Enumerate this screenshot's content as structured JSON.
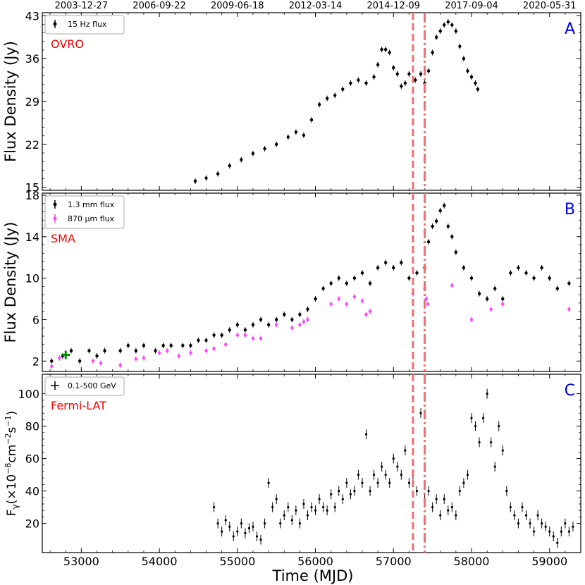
{
  "chart_data": [
    {
      "type": "scatter",
      "panel_label": "A",
      "instrument": "OVRO",
      "ylabel": "Flux Density (Jy)",
      "xlabel": "",
      "xlim": [
        52500,
        59400
      ],
      "ylim": [
        14.5,
        43.5
      ],
      "yticks": [
        15,
        22,
        29,
        36,
        43
      ],
      "top_axis_dates": [
        "2003-12-27",
        "2006-09-22",
        "2009-06-18",
        "2012-03-14",
        "2014-12-09",
        "2017-09-04",
        "2020-05-31"
      ],
      "top_axis_mjd": [
        53000,
        54000,
        55000,
        56000,
        57000,
        58000,
        59000
      ],
      "legend": [
        {
          "label": "15 Hz flux",
          "color": "#000000"
        }
      ],
      "series": [
        {
          "name": "15 Hz flux",
          "color": "#000000",
          "x": [
            54460,
            54600,
            54750,
            54900,
            55050,
            55200,
            55350,
            55500,
            55650,
            55750,
            55850,
            55950,
            56050,
            56150,
            56250,
            56350,
            56450,
            56550,
            56650,
            56750,
            56800,
            56850,
            56900,
            56950,
            57000,
            57050,
            57100,
            57150,
            57200,
            57280,
            57350,
            57400,
            57450,
            57500,
            57550,
            57600,
            57650,
            57700,
            57750,
            57800,
            57850,
            57900,
            57950,
            58000,
            58050,
            58080
          ],
          "y": [
            16.0,
            16.5,
            17.2,
            18.5,
            19.5,
            20.5,
            21.3,
            22.0,
            23.2,
            24.0,
            23.5,
            26.0,
            28.5,
            29.5,
            30.0,
            31.0,
            32.0,
            32.5,
            32.0,
            33.0,
            35.0,
            37.5,
            37.5,
            37.0,
            34.5,
            33.5,
            31.5,
            32.0,
            33.5,
            32.5,
            33.5,
            32.0,
            34.0,
            37.0,
            39.5,
            40.5,
            41.5,
            42.0,
            41.5,
            40.5,
            38.0,
            36.0,
            34.0,
            33.0,
            32.0,
            31.0
          ]
        }
      ],
      "vlines": [
        {
          "x": 57250,
          "style": "dashed",
          "color": "#f07070"
        },
        {
          "x": 57400,
          "style": "dashdot",
          "color": "#f07070"
        }
      ]
    },
    {
      "type": "scatter",
      "panel_label": "B",
      "instrument": "SMA",
      "ylabel": "Flux Density (Jy)",
      "xlabel": "",
      "xlim": [
        52500,
        59400
      ],
      "ylim": [
        1.0,
        18.2
      ],
      "yticks": [
        2,
        6,
        10,
        14,
        18
      ],
      "legend": [
        {
          "label": "1.3 mm flux",
          "color": "#000000"
        },
        {
          "label": "870 μm flux",
          "color": "#ff44ff"
        }
      ],
      "series": [
        {
          "name": "1.3 mm flux",
          "color": "#000000",
          "x": [
            52620,
            52760,
            52870,
            52980,
            53100,
            53200,
            53300,
            53500,
            53600,
            53700,
            53800,
            53950,
            54050,
            54150,
            54300,
            54400,
            54500,
            54600,
            54700,
            54800,
            54900,
            55000,
            55100,
            55200,
            55300,
            55400,
            55500,
            55600,
            55700,
            55800,
            55900,
            56000,
            56100,
            56200,
            56300,
            56400,
            56500,
            56600,
            56700,
            56800,
            56900,
            57000,
            57100,
            57200,
            57300,
            57400,
            57450,
            57500,
            57550,
            57600,
            57650,
            57700,
            57750,
            57800,
            57900,
            58000,
            58100,
            58200,
            58300,
            58400,
            58500,
            58600,
            58700,
            58800,
            58900,
            59000,
            59100,
            59250
          ],
          "y": [
            2.0,
            2.5,
            3.0,
            2.0,
            3.0,
            2.5,
            3.0,
            3.0,
            3.5,
            3.0,
            3.5,
            3.0,
            3.5,
            3.5,
            3.5,
            3.5,
            4.0,
            4.0,
            4.5,
            4.5,
            5.0,
            5.5,
            5.0,
            5.5,
            6.0,
            5.5,
            6.0,
            6.5,
            6.0,
            6.5,
            7.0,
            8.0,
            9.0,
            9.5,
            10.0,
            9.5,
            10.0,
            10.5,
            9.5,
            11.0,
            11.5,
            11.0,
            11.5,
            10.0,
            10.5,
            11.0,
            13.5,
            15.0,
            15.5,
            16.5,
            17.0,
            15.0,
            14.0,
            12.5,
            11.0,
            10.0,
            8.5,
            8.0,
            9.0,
            8.0,
            10.5,
            11.0,
            10.5,
            10.0,
            11.0,
            10.0,
            9.0,
            9.5
          ]
        },
        {
          "name": "870 μm flux",
          "color": "#ff44ff",
          "x": [
            52620,
            52720,
            53150,
            53250,
            53500,
            53700,
            53800,
            54000,
            54100,
            54250,
            54400,
            54600,
            54700,
            54850,
            55000,
            55100,
            55200,
            55300,
            55500,
            55700,
            55800,
            55850,
            55900,
            56200,
            56300,
            56400,
            56500,
            56600,
            56650,
            56700,
            57250,
            57400,
            57420,
            57440,
            57750,
            58000,
            58250,
            58400,
            59250
          ],
          "y": [
            1.5,
            2.3,
            2.0,
            1.8,
            1.6,
            2.2,
            2.3,
            2.8,
            3.0,
            2.5,
            2.8,
            3.0,
            3.2,
            3.6,
            4.5,
            4.5,
            4.2,
            4.2,
            5.5,
            5.2,
            5.5,
            5.8,
            6.0,
            7.5,
            8.0,
            7.5,
            8.2,
            7.8,
            6.5,
            6.8,
            8.5,
            9.0,
            8.0,
            7.5,
            9.3,
            6.0,
            7.0,
            7.5,
            7.0
          ]
        },
        {
          "name": "",
          "color": "#008800",
          "marker": "plus-large",
          "x": [
            52800
          ],
          "y": [
            2.6
          ]
        }
      ],
      "vlines": [
        {
          "x": 57250,
          "style": "dashed",
          "color": "#f07070"
        },
        {
          "x": 57400,
          "style": "dashdot",
          "color": "#f07070"
        }
      ]
    },
    {
      "type": "scatter",
      "panel_label": "C",
      "instrument": "Fermi-LAT",
      "ylabel": "F_γ(×10^−8 cm^−2 s^−1)",
      "ylabel_parts": {
        "main": "F",
        "sub": "γ",
        "open": "(×10",
        "exp1": "−8",
        "mid": "cm",
        "exp2": "−2",
        "s": "s",
        "exp3": "−1",
        "close": ")"
      },
      "xlabel": "Time (MJD)",
      "xlim": [
        52500,
        59400
      ],
      "ylim": [
        2,
        112
      ],
      "yticks": [
        20,
        40,
        60,
        80,
        100
      ],
      "xticks": [
        53000,
        54000,
        55000,
        56000,
        57000,
        58000,
        59000
      ],
      "legend": [
        {
          "label": "0.1-500 GeV",
          "color": "#000000"
        }
      ],
      "series": [
        {
          "name": "0.1-500 GeV",
          "color": "#000000",
          "x": [
            54700,
            54750,
            54800,
            54850,
            54900,
            54950,
            55000,
            55050,
            55100,
            55150,
            55200,
            55250,
            55300,
            55350,
            55400,
            55450,
            55500,
            55550,
            55600,
            55650,
            55700,
            55750,
            55800,
            55850,
            55900,
            55950,
            56000,
            56050,
            56100,
            56150,
            56200,
            56250,
            56300,
            56350,
            56400,
            56450,
            56500,
            56550,
            56600,
            56650,
            56700,
            56750,
            56800,
            56850,
            56900,
            56950,
            57000,
            57050,
            57100,
            57150,
            57200,
            57250,
            57300,
            57350,
            57400,
            57450,
            57500,
            57550,
            57600,
            57650,
            57700,
            57750,
            57800,
            57850,
            57900,
            57950,
            58000,
            58050,
            58100,
            58150,
            58200,
            58250,
            58300,
            58350,
            58400,
            58450,
            58500,
            58550,
            58600,
            58650,
            58700,
            58750,
            58800,
            58850,
            58900,
            58950,
            59000,
            59050,
            59100,
            59150,
            59200,
            59250,
            59300
          ],
          "y": [
            30,
            20,
            15,
            22,
            18,
            12,
            15,
            20,
            14,
            17,
            18,
            12,
            10,
            20,
            45,
            30,
            35,
            20,
            25,
            30,
            22,
            28,
            20,
            32,
            25,
            30,
            28,
            35,
            30,
            28,
            38,
            30,
            40,
            35,
            45,
            38,
            40,
            50,
            45,
            75,
            40,
            50,
            45,
            55,
            50,
            45,
            60,
            55,
            50,
            65,
            45,
            50,
            40,
            88,
            35,
            40,
            30,
            35,
            25,
            35,
            28,
            30,
            25,
            40,
            45,
            50,
            85,
            80,
            70,
            85,
            100,
            70,
            55,
            80,
            65,
            40,
            30,
            25,
            20,
            30,
            25,
            20,
            15,
            25,
            20,
            18,
            15,
            12,
            8,
            15,
            20,
            15,
            18
          ]
        }
      ],
      "vlines": [
        {
          "x": 57250,
          "style": "dashed",
          "color": "#f07070"
        },
        {
          "x": 57400,
          "style": "dashdot",
          "color": "#f07070"
        }
      ]
    }
  ],
  "colors": {
    "axis": "#000000",
    "vline": "#f07070",
    "panel_letter": "#0000ee",
    "instrument_label": "#ee0000",
    "sma_green": "#008800"
  }
}
